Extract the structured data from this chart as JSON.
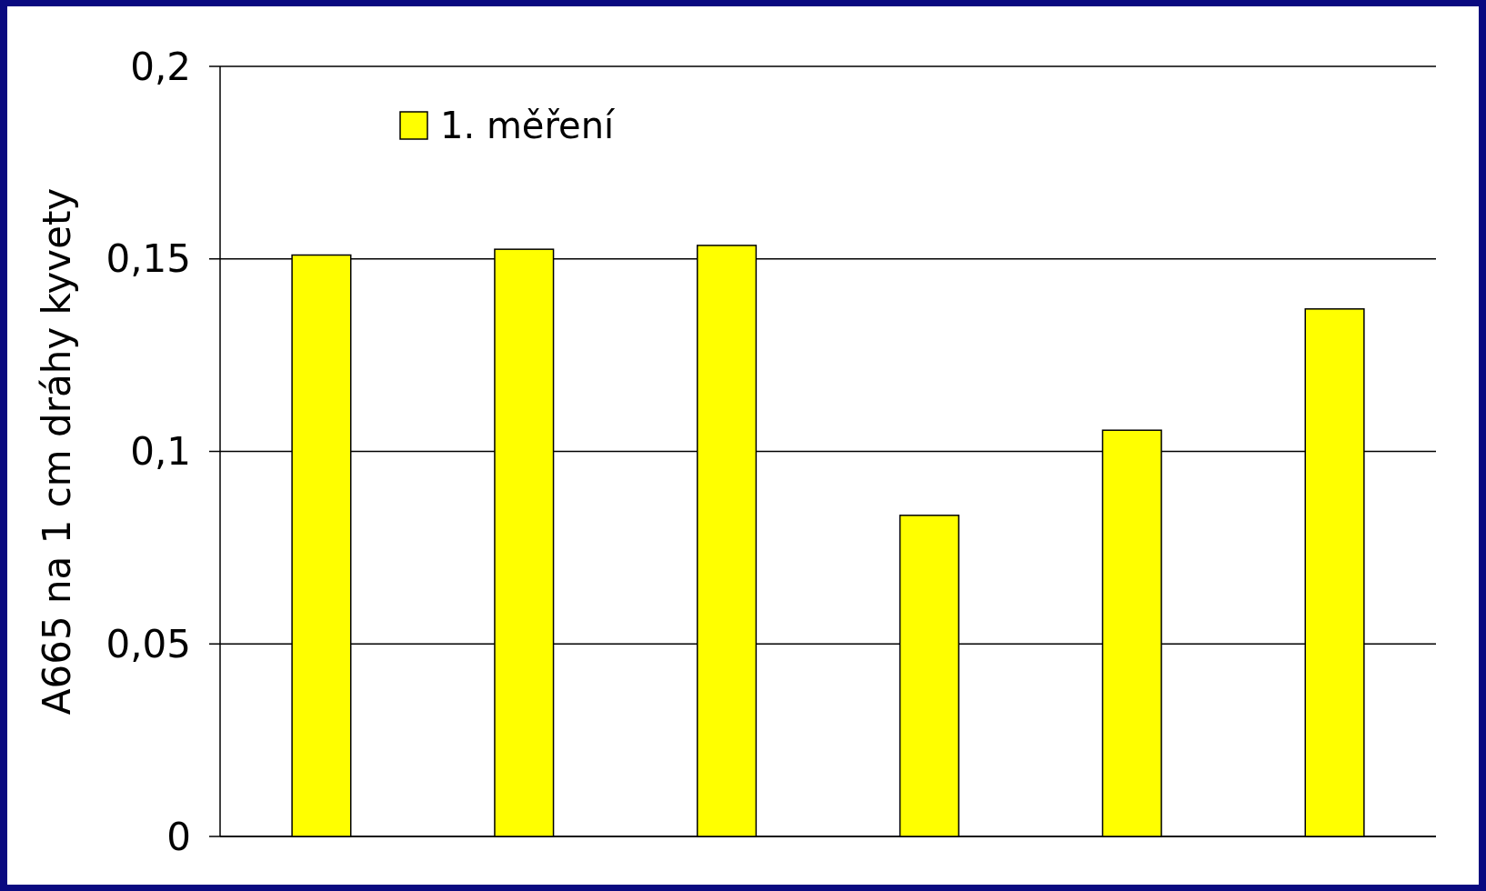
{
  "chart_data": {
    "type": "bar",
    "ylabel": "A665 na 1 cm dráhy kyvety",
    "categories": [
      null,
      null,
      null,
      null,
      null,
      null
    ],
    "series": [
      {
        "name": "1. měření",
        "color": "#ffff00",
        "values": [
          0.151,
          0.1525,
          0.1535,
          0.0834,
          0.1055,
          0.137
        ]
      }
    ],
    "ylim": [
      0,
      0.2
    ],
    "yticks": [
      {
        "value": 0,
        "label": "0"
      },
      {
        "value": 0.05,
        "label": "0,05"
      },
      {
        "value": 0.1,
        "label": "0,1"
      },
      {
        "value": 0.15,
        "label": "0,15"
      },
      {
        "value": 0.2,
        "label": "0,2"
      }
    ],
    "grid": "y",
    "legend": "top left"
  }
}
